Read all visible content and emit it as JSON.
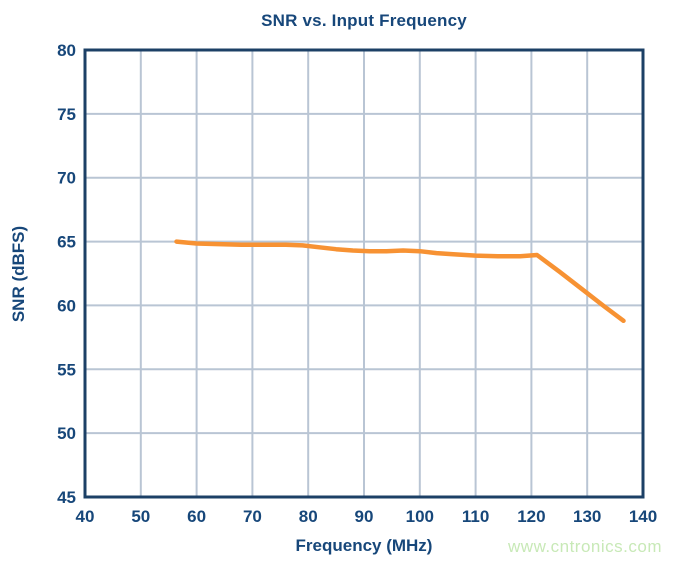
{
  "colors": {
    "text": "#17477A",
    "frame": "#1C4066",
    "grid": "#B9C5D4",
    "line": "#F79233",
    "watermark": "#C8E9B7",
    "background": "#FFFFFF"
  },
  "watermark": "www.cntronics.com",
  "chart_data": {
    "type": "line",
    "title": "SNR vs. Input Frequency",
    "xlabel": "Frequency (MHz)",
    "ylabel": "SNR (dBFS)",
    "xlim": [
      40,
      140
    ],
    "ylim": [
      45,
      80
    ],
    "x_ticks": [
      40,
      50,
      60,
      70,
      80,
      90,
      100,
      110,
      120,
      130,
      140
    ],
    "y_ticks": [
      45,
      50,
      55,
      60,
      65,
      70,
      75,
      80
    ],
    "grid": true,
    "legend": false,
    "series": [
      {
        "name": "SNR",
        "color": "#F79233",
        "points": [
          [
            56.4,
            65.0
          ],
          [
            60,
            64.85
          ],
          [
            64,
            64.8
          ],
          [
            68,
            64.75
          ],
          [
            72,
            64.75
          ],
          [
            76,
            64.75
          ],
          [
            79,
            64.7
          ],
          [
            82,
            64.55
          ],
          [
            85,
            64.4
          ],
          [
            88,
            64.3
          ],
          [
            91,
            64.25
          ],
          [
            94,
            64.25
          ],
          [
            97,
            64.3
          ],
          [
            100,
            64.25
          ],
          [
            103,
            64.1
          ],
          [
            106,
            64.0
          ],
          [
            110,
            63.9
          ],
          [
            114,
            63.85
          ],
          [
            118,
            63.85
          ],
          [
            121,
            63.95
          ],
          [
            125,
            62.65
          ],
          [
            129,
            61.3
          ],
          [
            133,
            59.95
          ],
          [
            136.5,
            58.8
          ]
        ]
      }
    ]
  }
}
